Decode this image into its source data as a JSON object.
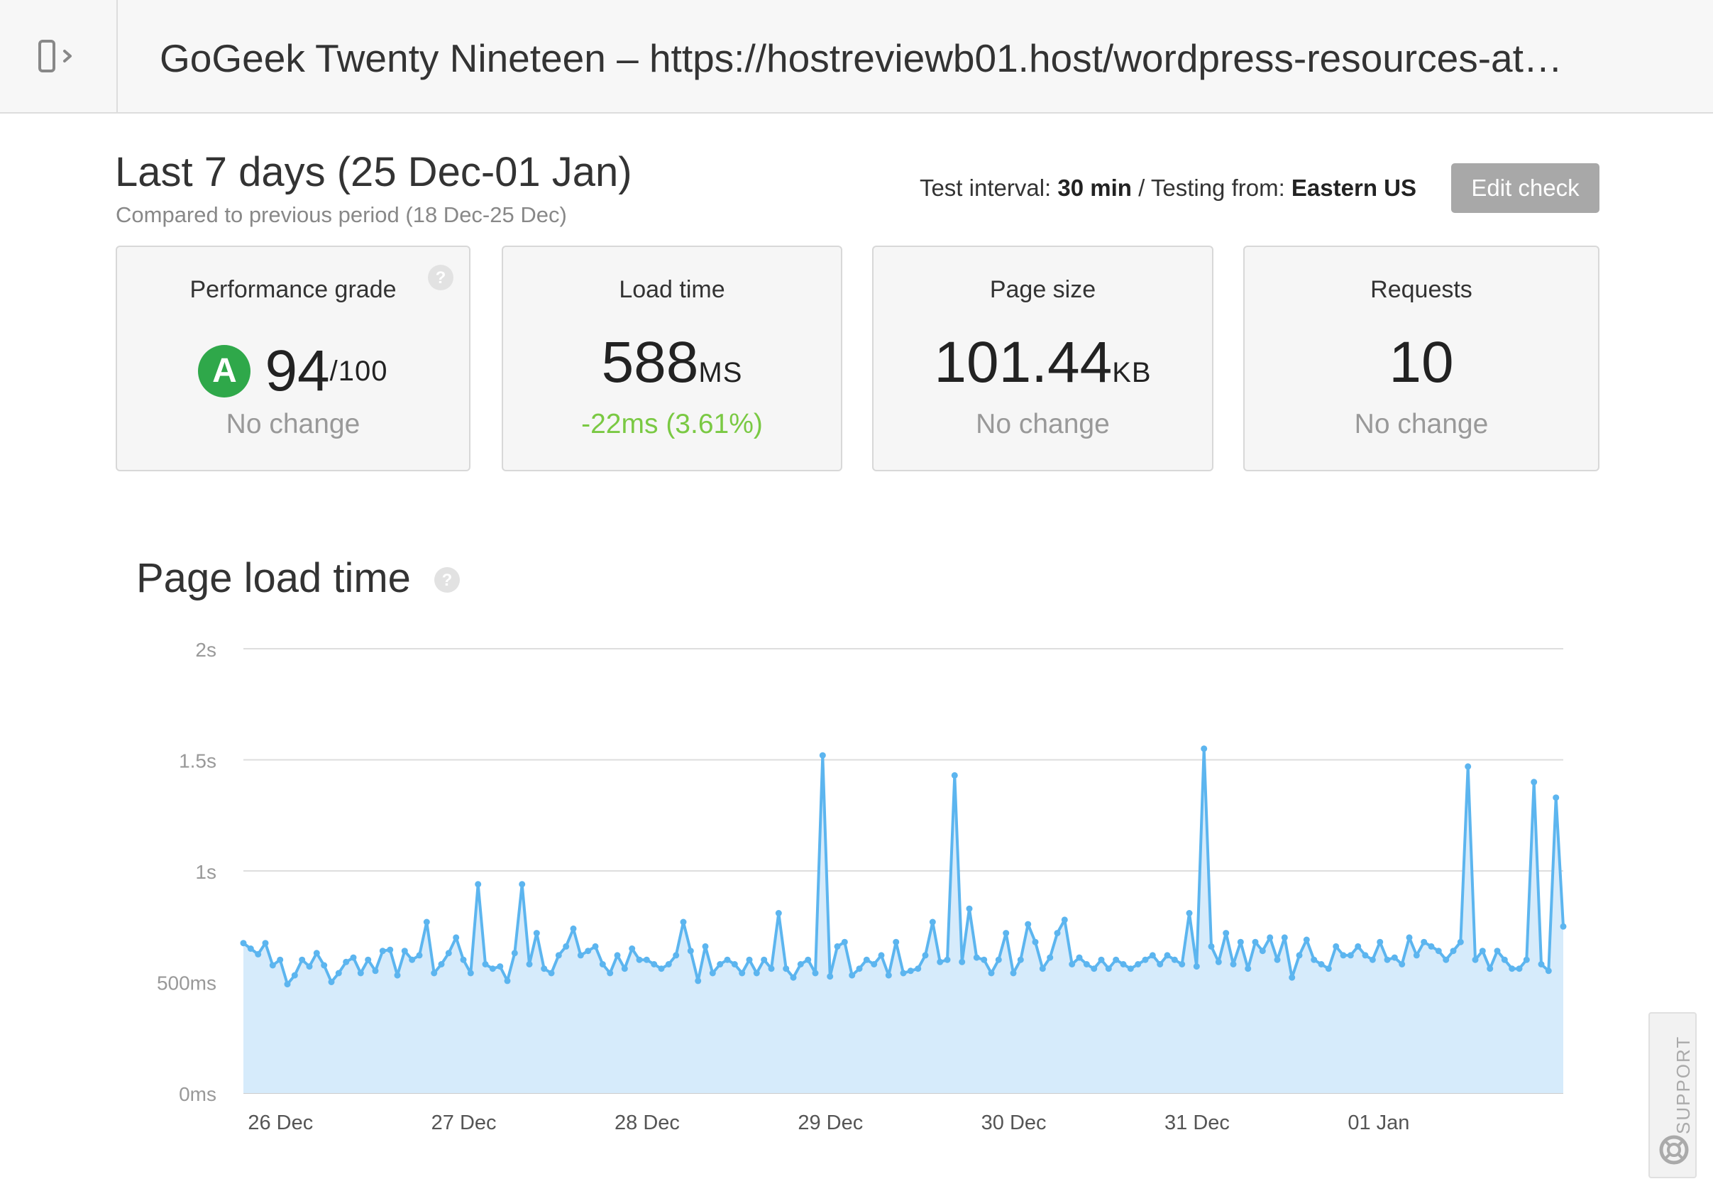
{
  "header": {
    "title": "GoGeek Twenty Nineteen – https://hostreviewb01.host/wordpress-resources-at…"
  },
  "period": {
    "title": "Last 7 days (25 Dec-01 Jan)",
    "subtitle": "Compared to previous period (18 Dec-25 Dec)"
  },
  "test_info": {
    "interval_label": "Test interval:",
    "interval_value": "30 min",
    "separator": "/",
    "from_label": "Testing from:",
    "from_value": "Eastern US"
  },
  "edit_button": {
    "label": "Edit check"
  },
  "metrics": {
    "grade": {
      "label": "Performance grade",
      "letter": "A",
      "value": "94",
      "unit": "/100",
      "change": "No change",
      "badge_color": "#2fa84a"
    },
    "load_time": {
      "label": "Load time",
      "value": "588",
      "unit": "MS",
      "change": "-22ms (3.61%)",
      "change_color": "#7ac943"
    },
    "page_size": {
      "label": "Page size",
      "value": "101.44",
      "unit": "KB",
      "change": "No change"
    },
    "requests": {
      "label": "Requests",
      "value": "10",
      "change": "No change"
    }
  },
  "support": {
    "label": "SUPPORT"
  },
  "chart_data": {
    "type": "area",
    "title": "Page load time",
    "xlabel": "",
    "ylabel": "",
    "y_unit": "ms",
    "ylim": [
      0,
      2000
    ],
    "y_ticks": [
      {
        "value": 0,
        "label": "0ms"
      },
      {
        "value": 500,
        "label": "500ms"
      },
      {
        "value": 1000,
        "label": "1s"
      },
      {
        "value": 1500,
        "label": "1.5s"
      },
      {
        "value": 2000,
        "label": "2s"
      }
    ],
    "x_ticks": [
      {
        "index": 1,
        "label": "26 Dec"
      },
      {
        "index": 26,
        "label": "27 Dec"
      },
      {
        "index": 51,
        "label": "28 Dec"
      },
      {
        "index": 76,
        "label": "29 Dec"
      },
      {
        "index": 101,
        "label": "30 Dec"
      },
      {
        "index": 126,
        "label": "31 Dec"
      },
      {
        "index": 151,
        "label": "01 Jan"
      }
    ],
    "grid": true,
    "legend": "none",
    "line_color": "#5cb5ef",
    "fill_color": "#d6ebfb",
    "series": [
      {
        "values": [
          675,
          650,
          625,
          675,
          575,
          600,
          490,
          530,
          600,
          570,
          630,
          575,
          500,
          540,
          590,
          610,
          540,
          600,
          550,
          640,
          645,
          530,
          640,
          600,
          620,
          770,
          540,
          580,
          630,
          700,
          600,
          540,
          940,
          580,
          560,
          570,
          505,
          630,
          940,
          580,
          720,
          560,
          540,
          620,
          660,
          740,
          620,
          640,
          660,
          580,
          540,
          620,
          560,
          650,
          600,
          600,
          580,
          560,
          580,
          620,
          770,
          640,
          505,
          660,
          540,
          580,
          600,
          580,
          540,
          600,
          540,
          600,
          560,
          810,
          560,
          520,
          580,
          600,
          540,
          1520,
          525,
          660,
          680,
          530,
          560,
          600,
          580,
          620,
          530,
          680,
          540,
          550,
          560,
          620,
          770,
          590,
          600,
          1430,
          590,
          830,
          610,
          600,
          540,
          600,
          720,
          540,
          600,
          760,
          680,
          560,
          610,
          720,
          780,
          580,
          610,
          580,
          560,
          600,
          560,
          600,
          580,
          560,
          580,
          600,
          620,
          580,
          620,
          600,
          580,
          810,
          570,
          1550,
          660,
          590,
          720,
          580,
          680,
          560,
          680,
          640,
          700,
          600,
          700,
          520,
          620,
          690,
          600,
          580,
          560,
          660,
          620,
          620,
          660,
          620,
          600,
          680,
          600,
          610,
          580,
          700,
          620,
          680,
          660,
          640,
          600,
          640,
          680,
          1470,
          600,
          640,
          560,
          640,
          600,
          560,
          560,
          600,
          1400,
          580,
          550,
          1330,
          750
        ]
      }
    ]
  }
}
